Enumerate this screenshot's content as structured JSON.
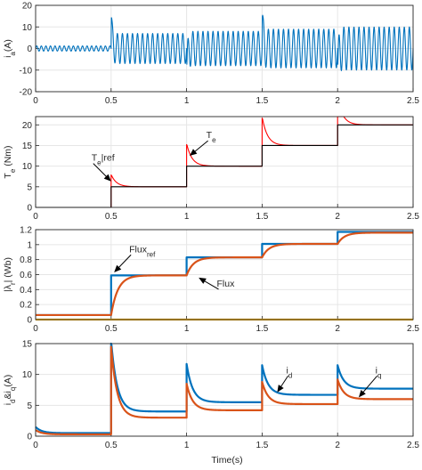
{
  "figure": {
    "xlabel": "Time(s)"
  },
  "chart_data": [
    {
      "type": "line",
      "ylabel": "i_a(A)",
      "xlim": [
        0,
        2.5
      ],
      "ylim": [
        -20,
        20
      ],
      "xticks": [
        0,
        0.5,
        1,
        1.5,
        2,
        2.5
      ],
      "yticks": [
        -20,
        -10,
        0,
        10,
        20
      ],
      "grid": true,
      "series": [
        {
          "color": "#0072bd",
          "kind": "oscillation",
          "segments": [
            {
              "t0": 0.0,
              "t1": 0.5,
              "amp": 1.2,
              "freq": 33,
              "spike": 0
            },
            {
              "t0": 0.5,
              "t1": 1.0,
              "amp": 7,
              "freq": 30,
              "spike": 18
            },
            {
              "t0": 1.0,
              "t1": 1.5,
              "amp": 8,
              "freq": 30,
              "spike": -15
            },
            {
              "t0": 1.5,
              "t1": 2.0,
              "amp": 9,
              "freq": 30,
              "spike": 18
            },
            {
              "t0": 2.0,
              "t1": 2.5,
              "amp": 10,
              "freq": 30,
              "spike": -16
            }
          ]
        }
      ],
      "annotations": []
    },
    {
      "type": "line",
      "ylabel": "T_e (Nm)",
      "xlim": [
        0,
        2.5
      ],
      "ylim": [
        0,
        22
      ],
      "xticks": [
        0,
        0.5,
        1,
        1.5,
        2,
        2.5
      ],
      "yticks": [
        0,
        5,
        10,
        15,
        20
      ],
      "grid": true,
      "series": [
        {
          "name": "T_e",
          "color": "#ff0000",
          "kind": "step",
          "base": 0,
          "steps": [
            {
              "t": 0.5,
              "to": 5,
              "over": 3
            },
            {
              "t": 1.0,
              "to": 10,
              "over": 5.5
            },
            {
              "t": 1.5,
              "to": 15,
              "over": 7
            },
            {
              "t": 2.0,
              "to": 20,
              "over": 6.5
            }
          ],
          "tau": 0.035
        },
        {
          "name": "T_e|ref",
          "color": "#000000",
          "kind": "stair",
          "base": 0,
          "steps": [
            {
              "t": 0.5,
              "to": 5
            },
            {
              "t": 1.0,
              "to": 10
            },
            {
              "t": 1.5,
              "to": 15
            },
            {
              "t": 2.0,
              "to": 20
            }
          ]
        }
      ],
      "annotations": [
        {
          "text": "T",
          "sub": "e",
          "suffix": "|ref",
          "tx": 0.37,
          "ty": 11.3,
          "ax": 0.5,
          "ay": 6.3
        },
        {
          "text": "T",
          "sub": "e",
          "suffix": "",
          "tx": 1.13,
          "ty": 16.8,
          "ax": 1.02,
          "ay": 12.5
        }
      ]
    },
    {
      "type": "line",
      "ylabel": "|λ_r| (Wb)",
      "xlim": [
        0,
        2.5
      ],
      "ylim": [
        0,
        1.2
      ],
      "xticks": [
        0,
        0.5,
        1,
        1.5,
        2,
        2.5
      ],
      "yticks": [
        0,
        0.2,
        0.4,
        0.6,
        0.8,
        1,
        1.2
      ],
      "grid": true,
      "series": [
        {
          "name": "Flux_ref",
          "color": "#0072bd",
          "kind": "stair",
          "base": 0.06,
          "steps": [
            {
              "t": 0.5,
              "to": 0.59
            },
            {
              "t": 1.0,
              "to": 0.83
            },
            {
              "t": 1.5,
              "to": 1.01
            },
            {
              "t": 2.0,
              "to": 1.17
            }
          ]
        },
        {
          "name": "Flux",
          "color": "#d95319",
          "kind": "lag",
          "base": 0.06,
          "steps": [
            {
              "t": 0.5,
              "to": 0.59
            },
            {
              "t": 1.0,
              "to": 0.83
            },
            {
              "t": 1.5,
              "to": 1.01
            },
            {
              "t": 2.0,
              "to": 1.16
            }
          ],
          "tau": 0.045
        },
        {
          "color": "#edb120",
          "kind": "const",
          "value": 0.0
        }
      ],
      "annotations": [
        {
          "text": "Flux",
          "sub": "ref",
          "suffix": "",
          "tx": 0.62,
          "ty": 0.9,
          "ax": 0.52,
          "ay": 0.63
        },
        {
          "text": "Flux",
          "sub": "",
          "suffix": "",
          "tx": 1.2,
          "ty": 0.44,
          "ax": 1.08,
          "ay": 0.56
        }
      ]
    },
    {
      "type": "line",
      "ylabel": "i_d&i_q(A)",
      "xlim": [
        0,
        2.5
      ],
      "ylim": [
        0,
        15
      ],
      "xticks": [
        0,
        0.5,
        1,
        1.5,
        2,
        2.5
      ],
      "yticks": [
        0,
        5,
        10,
        15
      ],
      "grid": true,
      "series": [
        {
          "name": "i_d",
          "color": "#0072bd",
          "kind": "decay",
          "segments": [
            {
              "t0": 0.0,
              "t1": 0.5,
              "peak": 1.5,
              "settle": 0.5
            },
            {
              "t0": 0.5,
              "t1": 1.0,
              "peak": 15.5,
              "settle": 4.0
            },
            {
              "t0": 1.0,
              "t1": 1.5,
              "peak": 11.7,
              "settle": 5.5
            },
            {
              "t0": 1.5,
              "t1": 2.0,
              "peak": 11.5,
              "settle": 6.7
            },
            {
              "t0": 2.0,
              "t1": 2.5,
              "peak": 11.5,
              "settle": 7.7
            }
          ],
          "tau": 0.04
        },
        {
          "name": "i_q",
          "color": "#d95319",
          "kind": "decay",
          "segments": [
            {
              "t0": 0.0,
              "t1": 0.5,
              "peak": 1.0,
              "settle": 0.3
            },
            {
              "t0": 0.5,
              "t1": 1.0,
              "peak": 14.5,
              "settle": 3.0
            },
            {
              "t0": 1.0,
              "t1": 1.5,
              "peak": 8.5,
              "settle": 4.2
            },
            {
              "t0": 1.5,
              "t1": 2.0,
              "peak": 8.8,
              "settle": 5.2
            },
            {
              "t0": 2.0,
              "t1": 2.5,
              "peak": 9.2,
              "settle": 6.0
            }
          ],
          "tau": 0.04
        }
      ],
      "annotations": [
        {
          "text": "i",
          "sub": "d",
          "suffix": "",
          "tx": 1.66,
          "ty": 10.2,
          "ax": 1.6,
          "ay": 7.1
        },
        {
          "text": "i",
          "sub": "q",
          "suffix": "",
          "tx": 2.25,
          "ty": 10.2,
          "ax": 2.14,
          "ay": 6.3
        }
      ]
    }
  ]
}
